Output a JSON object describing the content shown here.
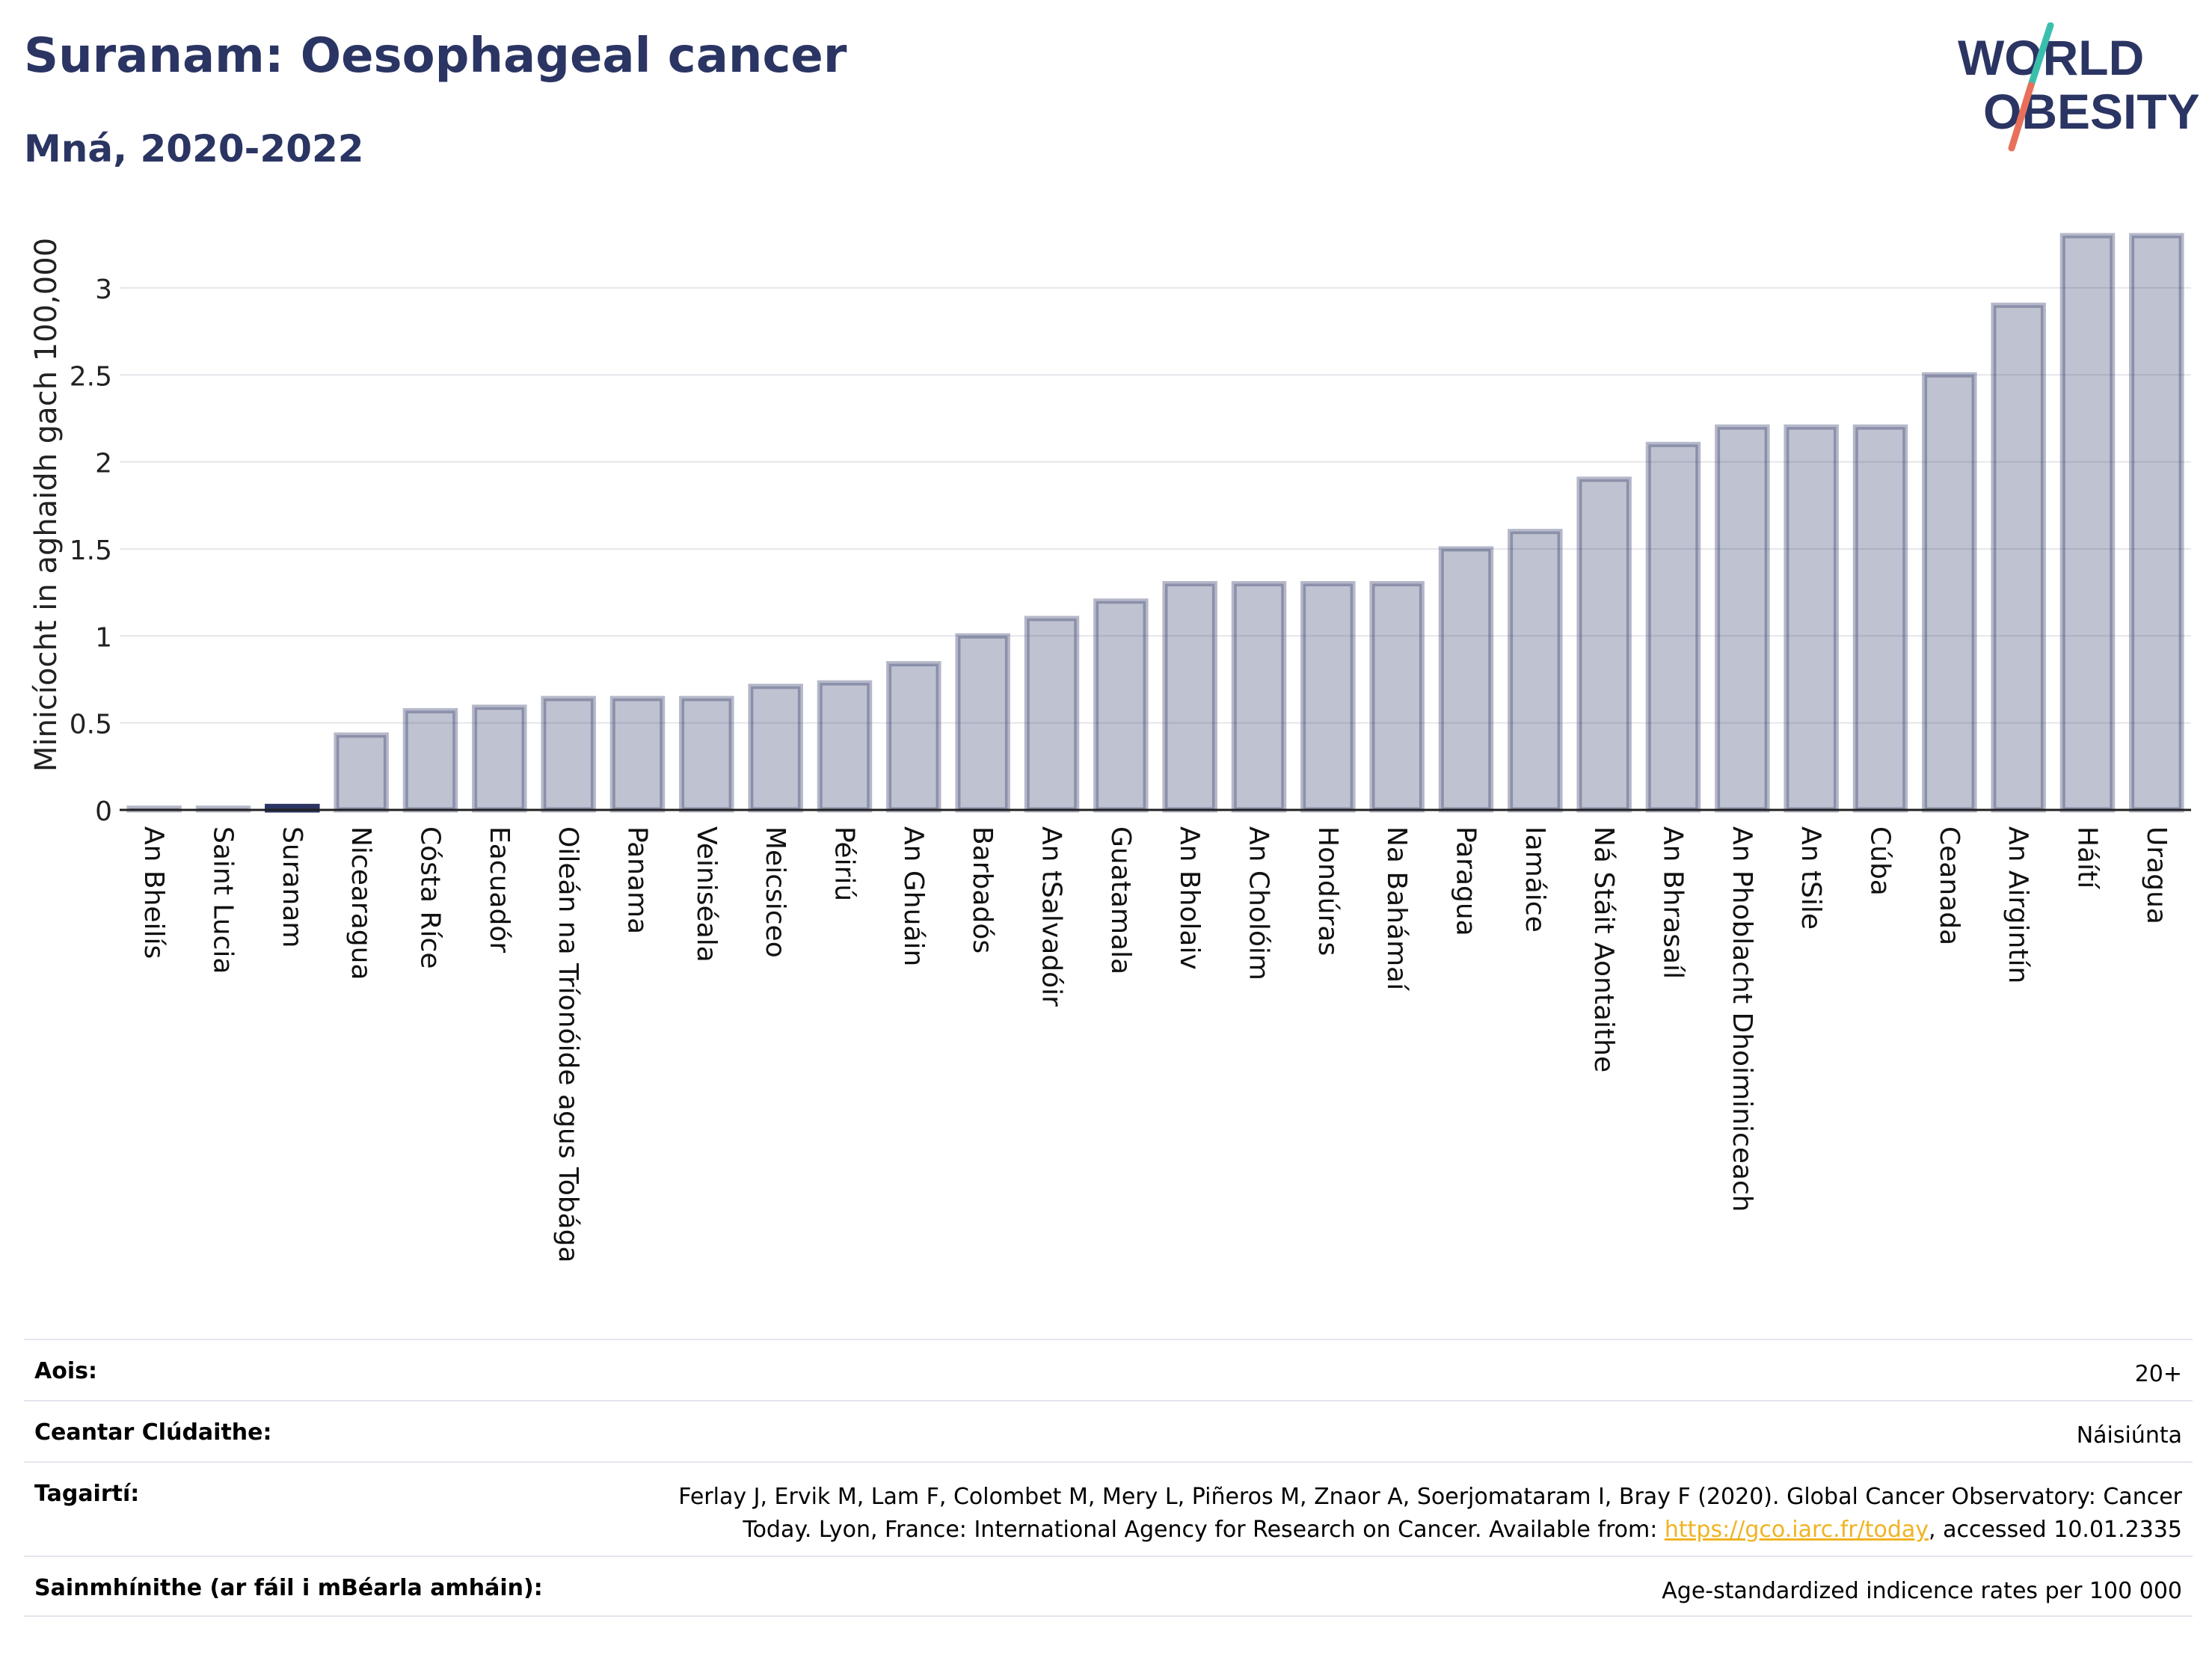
{
  "header": {
    "title": "Suranam: Oesophageal cancer",
    "subtitle": "Mná, 2020-2022"
  },
  "logo": {
    "line1": "WORLD",
    "line2": "OBESITY",
    "text_color": "#2b3563",
    "slash_color_top": "#3bbfad",
    "slash_color_bottom": "#e8705b"
  },
  "colors": {
    "bar_fill": "rgba(43,53,99,0.3)",
    "bar_stroke": "rgba(43,53,99,0.35)",
    "highlight": "#2b3563",
    "grid": "#e6e6ec",
    "axis": "#222222"
  },
  "chart_data": {
    "type": "bar",
    "ylabel": "Minicíocht in aghaidh gach 100,000",
    "xlabel": "",
    "ylim": [
      0,
      3.3
    ],
    "yticks": [
      0,
      0.5,
      1,
      1.5,
      2,
      2.5,
      3
    ],
    "ytick_labels": [
      "0",
      "0.5",
      "1",
      "1.5",
      "2",
      "2.5",
      "3"
    ],
    "grid": true,
    "highlight_category": "Suranam",
    "categories": [
      "An Bheilís",
      "Saint Lucia",
      "Suranam",
      "Nicearagua",
      "Cósta Ríce",
      "Eacuadór",
      "Oileán na Tríonóide agus Tobága",
      "Panama",
      "Veiniséala",
      "Meicsiceo",
      "Péiriú",
      "An Ghuáin",
      "Barbadós",
      "An tSalvadóir",
      "Guatamala",
      "An Bholaiv",
      "An Cholóim",
      "Hondúras",
      "Na Bahámaí",
      "Paragua",
      "Iamáice",
      "Ná Stáit Aontaithe",
      "An Bhrasaíl",
      "An Phoblacht Dhoiminiceach",
      "An tSile",
      "Cúba",
      "Ceanada",
      "An Airgintín",
      "Háítí",
      "Uragua"
    ],
    "values": [
      0.01,
      0.01,
      0.02,
      0.43,
      0.57,
      0.59,
      0.64,
      0.64,
      0.64,
      0.71,
      0.73,
      0.84,
      1.0,
      1.1,
      1.2,
      1.3,
      1.3,
      1.3,
      1.3,
      1.5,
      1.6,
      1.9,
      2.1,
      2.2,
      2.2,
      2.2,
      2.5,
      2.9,
      3.3,
      3.3
    ]
  },
  "info": {
    "age_label": "Aois:",
    "age_value": "20+",
    "area_label": "Ceantar Clúdaithe:",
    "area_value": "Náisiúnta",
    "refs_label": "Tagairtí:",
    "refs_text_before": "Ferlay J, Ervik M, Lam F, Colombet M, Mery L, Piñeros M, Znaor A, Soerjomataram I, Bray F (2020). Global Cancer Observatory: Cancer Today. Lyon, France: International Agency for Research on Cancer. Available from: ",
    "refs_link": "https://gco.iarc.fr/today",
    "refs_text_after": ", accessed 10.01.2335",
    "defs_label": "Sainmhínithe (ar fáil i mBéarla amháin):",
    "defs_value": "Age-standardized indicence rates per 100 000"
  }
}
